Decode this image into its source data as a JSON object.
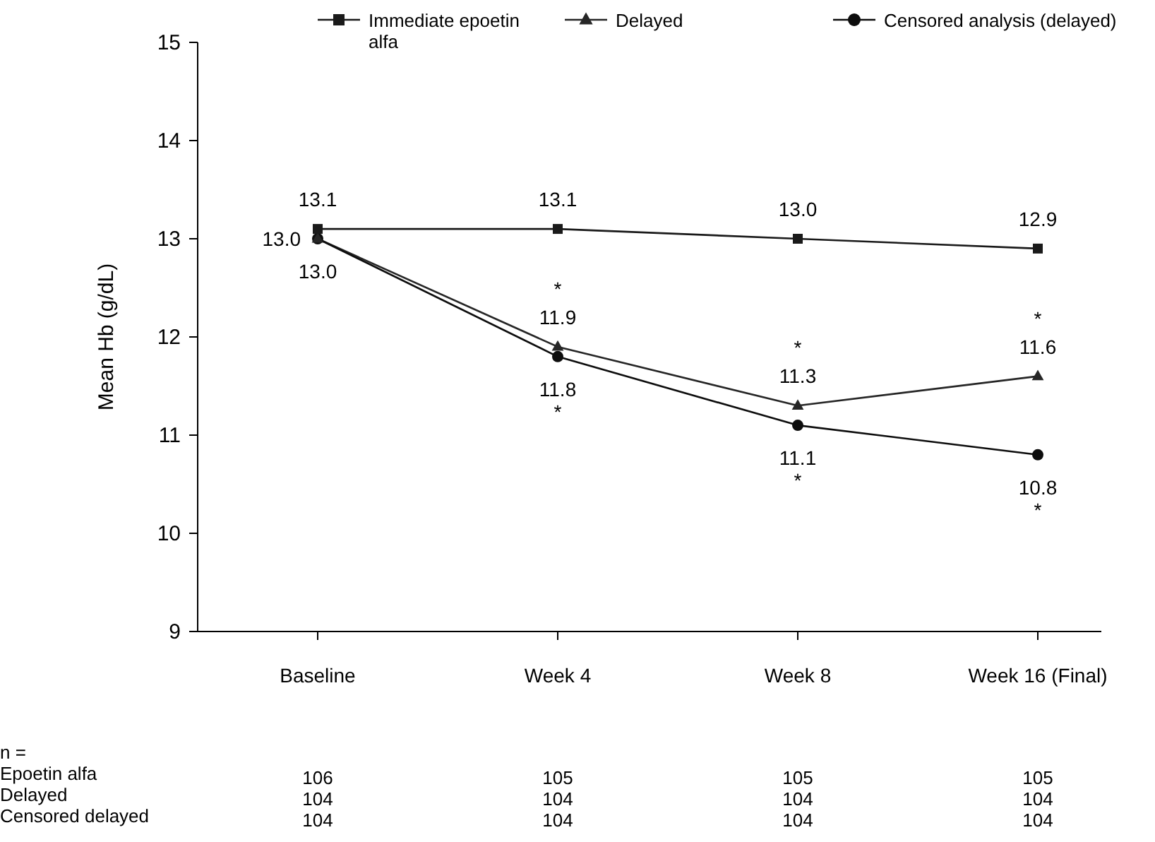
{
  "chart_data": {
    "type": "line",
    "ylabel": "Mean Hb (g/dL)",
    "categories": [
      "Baseline",
      "Week 4",
      "Week 8",
      "Week 16 (Final)"
    ],
    "ylim": [
      9,
      15
    ],
    "yticks": [
      9,
      10,
      11,
      12,
      13,
      14,
      15
    ],
    "grid": false,
    "legend": "top",
    "series": [
      {
        "name": "Immediate epoetin alfa",
        "color": "#1a1a1a",
        "marker": "square",
        "values": [
          13.1,
          13.1,
          13.0,
          12.9
        ],
        "value_labels": [
          "13.1",
          "13.1",
          "13.0",
          "12.9"
        ]
      },
      {
        "name": "Delayed",
        "color": "#262626",
        "marker": "triangle",
        "values": [
          13.0,
          11.9,
          11.3,
          11.6
        ],
        "value_labels": [
          "13.0",
          "11.9",
          "11.3",
          "11.6"
        ]
      },
      {
        "name": "Censored analysis (delayed)",
        "color": "#0d0d0d",
        "marker": "circle",
        "values": [
          13.0,
          11.8,
          11.1,
          10.8
        ],
        "value_labels": [
          "13.0",
          "11.8",
          "11.1",
          "10.8"
        ]
      }
    ],
    "annotations": [
      "*",
      "*",
      "*",
      "*",
      "*",
      "*",
      "n =",
      "Epoetin alfa",
      "106",
      "105",
      "105",
      "105",
      "Delayed",
      "104",
      "104",
      "104",
      "104",
      "Censored delayed",
      "104",
      "104",
      "104",
      "104"
    ]
  }
}
